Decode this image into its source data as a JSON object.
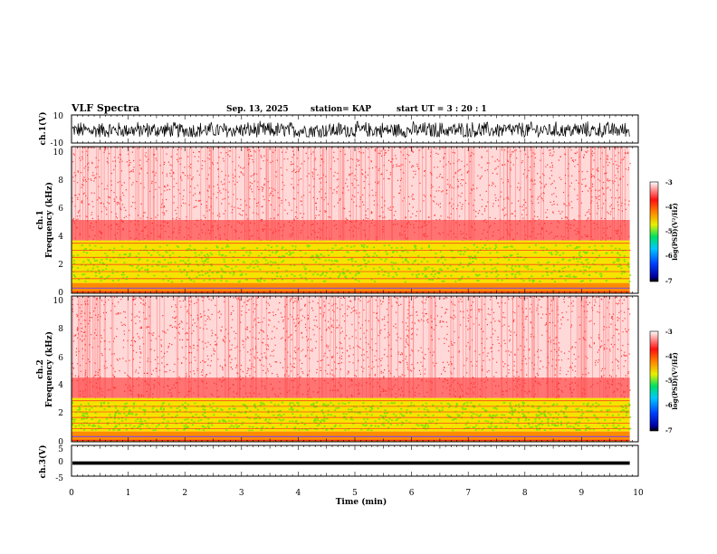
{
  "header": {
    "title": "VLF Spectra",
    "date": "Sep. 13, 2025",
    "station": "station= KAP",
    "start": "start  UT  =   3  : 20 : 1"
  },
  "chart_data": [
    {
      "type": "line",
      "name": "ch1-waveform",
      "ylabel": "ch.1(V)",
      "ylim": [
        -10,
        10
      ],
      "yticks": [
        "10",
        "-10"
      ],
      "xlim": [
        0,
        10
      ],
      "data_extent_min": 9.85,
      "description_range": [
        -6,
        6
      ]
    },
    {
      "type": "heatmap",
      "name": "ch1-spectrogram",
      "ylabel": "ch.1",
      "ylabel2": "Frequency  (kHz)",
      "ylim": [
        0,
        10
      ],
      "yticks": [
        "0",
        "2",
        "4",
        "6",
        "8",
        "10"
      ],
      "xlim": [
        0,
        10
      ],
      "data_extent_min": 9.85,
      "band_edge_khz": 3.6,
      "colorbar": {
        "label": "log(PSD)(V²/Hz)",
        "range": [
          -7,
          -3
        ],
        "ticks": [
          "-3",
          "-4",
          "-5",
          "-6",
          "-7"
        ]
      }
    },
    {
      "type": "heatmap",
      "name": "ch2-spectrogram",
      "ylabel": "ch.2",
      "ylabel2": "Frequency  (kHz)",
      "ylim": [
        0,
        10
      ],
      "yticks": [
        "0",
        "2",
        "4",
        "6",
        "8",
        "10"
      ],
      "xlim": [
        0,
        10
      ],
      "data_extent_min": 9.85,
      "band_edge_khz": 3.0,
      "colorbar": {
        "label": "log(PSD)(V²/Hz)",
        "range": [
          -7,
          -3
        ],
        "ticks": [
          "-3",
          "-4",
          "-5",
          "-6",
          "-7"
        ]
      }
    },
    {
      "type": "line",
      "name": "ch3-waveform",
      "ylabel": "ch.3(V)",
      "ylim": [
        -5,
        5
      ],
      "yticks": [
        "5",
        "0",
        "-5"
      ],
      "xlim": [
        0,
        10
      ],
      "data_extent_min": 9.85,
      "description_range": [
        -1.3,
        -0.2
      ]
    }
  ],
  "xaxis": {
    "label": "Time  (min)",
    "ticks": [
      "0",
      "1",
      "2",
      "3",
      "4",
      "5",
      "6",
      "7",
      "8",
      "9",
      "10"
    ]
  },
  "colors": {
    "frame": "#000000",
    "noise": "#ff2020",
    "band_yellow": "#f5e400",
    "band_green": "#5ae000",
    "line_orange": "#ff8c00",
    "line_purple": "#8a4fd0"
  }
}
